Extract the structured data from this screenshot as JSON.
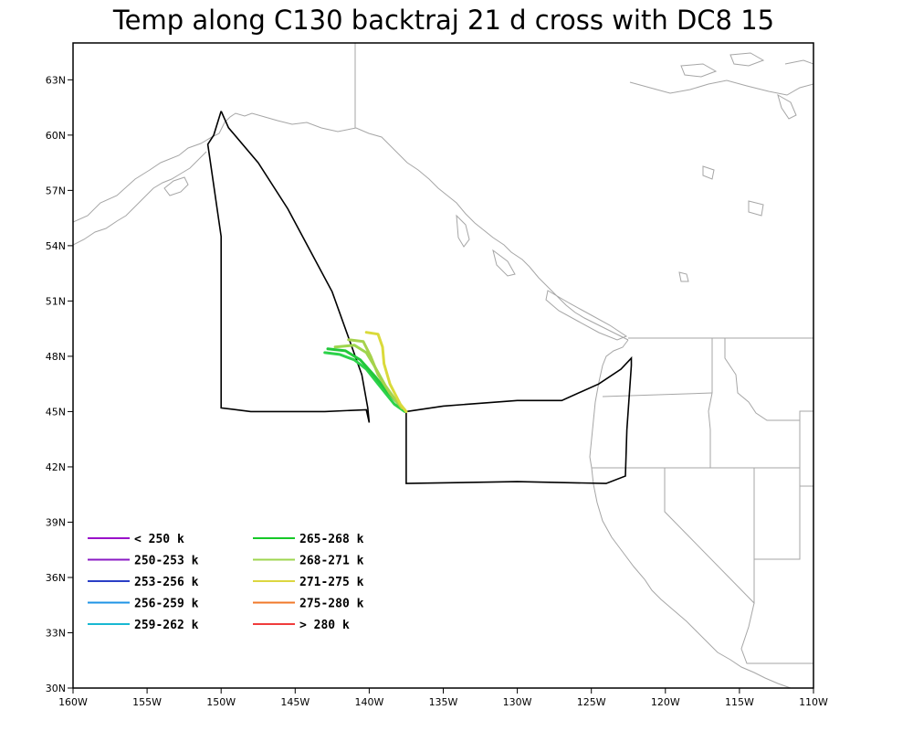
{
  "title": "Temp along C130 backtraj 21 d cross with DC8 15",
  "map": {
    "lon_range": [
      -160,
      -110
    ],
    "lat_range": [
      30,
      65
    ],
    "x_ticks": [
      {
        "value": -160,
        "label": "160W"
      },
      {
        "value": -155,
        "label": "155W"
      },
      {
        "value": -150,
        "label": "150W"
      },
      {
        "value": -145,
        "label": "145W"
      },
      {
        "value": -140,
        "label": "140W"
      },
      {
        "value": -135,
        "label": "135W"
      },
      {
        "value": -130,
        "label": "130W"
      },
      {
        "value": -125,
        "label": "125W"
      },
      {
        "value": -120,
        "label": "120W"
      },
      {
        "value": -115,
        "label": "115W"
      },
      {
        "value": -110,
        "label": "110W"
      }
    ],
    "y_ticks": [
      {
        "value": 30,
        "label": "30N"
      },
      {
        "value": 33,
        "label": "33N"
      },
      {
        "value": 36,
        "label": "36N"
      },
      {
        "value": 39,
        "label": "39N"
      },
      {
        "value": 42,
        "label": "42N"
      },
      {
        "value": 45,
        "label": "45N"
      },
      {
        "value": 48,
        "label": "48N"
      },
      {
        "value": 51,
        "label": "51N"
      },
      {
        "value": 54,
        "label": "54N"
      },
      {
        "value": 57,
        "label": "57N"
      },
      {
        "value": 60,
        "label": "60N"
      },
      {
        "value": 63,
        "label": "63N"
      }
    ],
    "colors": {
      "coastline": "#a6a6a6",
      "flight_track": "#000000"
    }
  },
  "flight_track_west": [
    [
      -150.0,
      61.3
    ],
    [
      -150.5,
      60.0
    ],
    [
      -150.9,
      59.5
    ],
    [
      -150.0,
      54.5
    ],
    [
      -150.0,
      45.2
    ],
    [
      -148.0,
      45.0
    ],
    [
      -143.0,
      45.0
    ],
    [
      -140.2,
      45.1
    ],
    [
      -140.0,
      44.4
    ],
    [
      -140.1,
      45.2
    ],
    [
      -140.5,
      47.0
    ],
    [
      -142.5,
      51.5
    ],
    [
      -145.5,
      56.0
    ],
    [
      -147.5,
      58.5
    ],
    [
      -149.5,
      60.4
    ],
    [
      -150.0,
      61.3
    ]
  ],
  "flight_track_east": [
    [
      -137.5,
      45.0
    ],
    [
      -135.0,
      45.3
    ],
    [
      -130.0,
      45.6
    ],
    [
      -127.0,
      45.6
    ],
    [
      -124.5,
      46.5
    ],
    [
      -123.0,
      47.3
    ],
    [
      -122.3,
      47.9
    ],
    [
      -122.3,
      47.5
    ],
    [
      -122.6,
      44.0
    ],
    [
      -122.7,
      41.5
    ],
    [
      -124.0,
      41.1
    ],
    [
      -130.0,
      41.2
    ],
    [
      -137.5,
      41.1
    ],
    [
      -137.5,
      45.0
    ]
  ],
  "trajectories": [
    {
      "color": "#2cd24a",
      "points": [
        [
          -143.0,
          48.2
        ],
        [
          -142.0,
          48.1
        ],
        [
          -141.0,
          47.8
        ],
        [
          -140.2,
          47.3
        ],
        [
          -139.5,
          46.6
        ],
        [
          -138.9,
          46.0
        ],
        [
          -138.3,
          45.4
        ],
        [
          -137.6,
          45.0
        ]
      ]
    },
    {
      "color": "#22c83a",
      "points": [
        [
          -142.8,
          48.4
        ],
        [
          -141.6,
          48.3
        ],
        [
          -140.6,
          47.8
        ],
        [
          -139.6,
          46.9
        ],
        [
          -138.8,
          46.1
        ],
        [
          -138.0,
          45.4
        ],
        [
          -137.5,
          45.0
        ]
      ]
    },
    {
      "color": "#9ed64e",
      "points": [
        [
          -142.3,
          48.5
        ],
        [
          -141.0,
          48.6
        ],
        [
          -140.2,
          48.2
        ],
        [
          -139.6,
          47.4
        ],
        [
          -138.9,
          46.4
        ],
        [
          -138.2,
          45.6
        ],
        [
          -137.6,
          45.1
        ]
      ]
    },
    {
      "color": "#a6d24c",
      "points": [
        [
          -141.4,
          48.9
        ],
        [
          -140.4,
          48.8
        ],
        [
          -139.9,
          48.0
        ],
        [
          -139.4,
          47.0
        ],
        [
          -138.6,
          46.0
        ],
        [
          -137.8,
          45.2
        ]
      ]
    },
    {
      "color": "#dada3a",
      "points": [
        [
          -140.2,
          49.3
        ],
        [
          -139.4,
          49.2
        ],
        [
          -139.1,
          48.5
        ],
        [
          -139.0,
          47.6
        ],
        [
          -138.6,
          46.5
        ],
        [
          -137.9,
          45.4
        ],
        [
          -137.5,
          45.0
        ]
      ]
    }
  ],
  "legend": [
    {
      "label": "< 250 k",
      "color": "#9a11c9"
    },
    {
      "label": "250-253 k",
      "color": "#8a1ac4"
    },
    {
      "label": "253-256 k",
      "color": "#2a3fc6"
    },
    {
      "label": "256-259 k",
      "color": "#1e93e6"
    },
    {
      "label": "259-262 k",
      "color": "#18b8d2"
    },
    {
      "label": "265-268 k",
      "color": "#16c828"
    },
    {
      "label": "268-271 k",
      "color": "#9ed64e"
    },
    {
      "label": "271-275 k",
      "color": "#dcd640"
    },
    {
      "label": "275-280 k",
      "color": "#f0782a"
    },
    {
      "label": "> 280 k",
      "color": "#f03c3c"
    }
  ]
}
